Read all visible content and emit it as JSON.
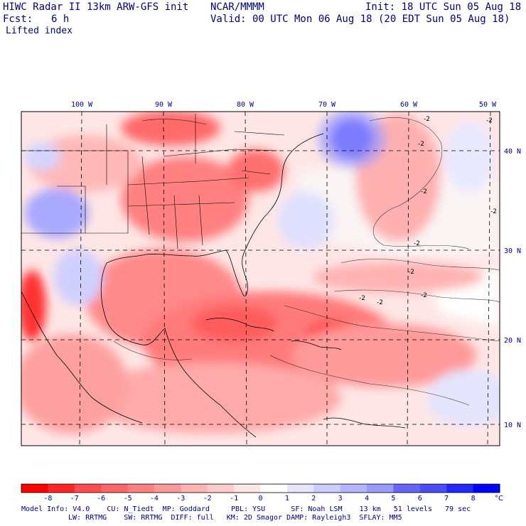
{
  "header": {
    "title": "HIWC Radar II 13km ARW-GFS init",
    "source": "NCAR/MMMM",
    "init": "Init: 18 UTC Sun 05 Aug 18",
    "fcst_label": "Fcst:",
    "fcst_value": "6 h",
    "valid": "Valid: 00 UTC Mon 06 Aug 18 (20 EDT Sun 05 Aug 18)",
    "field": "Lifted index"
  },
  "map": {
    "lon_labels": [
      "100 W",
      "90 W",
      "80 W",
      "70 W",
      "60 W",
      "50 W"
    ],
    "lat_labels": [
      "40 N",
      "30 N",
      "20 N",
      "10 N"
    ],
    "contour_labels": [
      "-2",
      "-2",
      "-2",
      "-2",
      "-2",
      "-2",
      "-2",
      "-2",
      "-2",
      "-2"
    ]
  },
  "colorbar": {
    "unit": "°C",
    "tick_labels": [
      "-8",
      "-7",
      "-6",
      "-5",
      "-4",
      "-3",
      "-2",
      "-1",
      "0",
      "1",
      "2",
      "3",
      "4",
      "5",
      "6",
      "7",
      "8"
    ],
    "colors": [
      "#ff0000",
      "#ff2626",
      "#ff4c4c",
      "#ff6666",
      "#ff8080",
      "#ff9999",
      "#ffb3b3",
      "#ffcccc",
      "#ffe6e6",
      "#ffffff",
      "#e6e6ff",
      "#ccccff",
      "#b3b3ff",
      "#9999ff",
      "#6666ff",
      "#4c4cff",
      "#2626ff",
      "#0000ff"
    ]
  },
  "footer": {
    "line1": "Model Info: V4.0    CU: N_Tiedt  MP: Goddard     PBL: YSU      SF: Noah LSM    13 km   51 levels   79 sec",
    "line2": "LW: RRTMG    SW: RRTMG  DIFF: full   KM: 2D Smagor DAMP: Rayleigh3  SFLAY: MM5"
  }
}
